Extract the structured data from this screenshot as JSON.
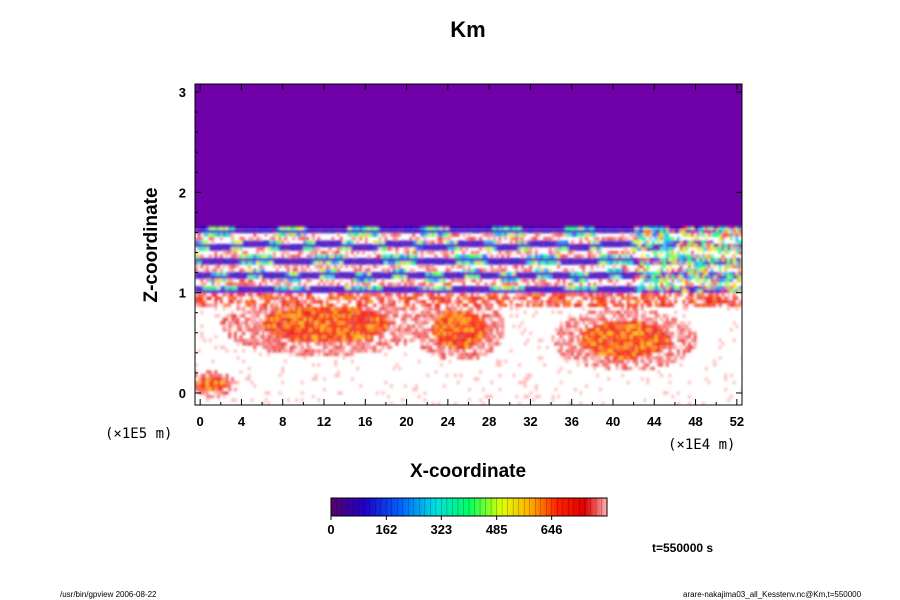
{
  "chart_data": {
    "type": "heatmap",
    "title": "Km",
    "xlabel": "X-coordinate",
    "ylabel": "Z-coordinate",
    "x_tick_labels": [
      "0",
      "4",
      "8",
      "12",
      "16",
      "20",
      "24",
      "28",
      "32",
      "36",
      "40",
      "44",
      "48",
      "52"
    ],
    "y_tick_labels": [
      "0",
      "1",
      "2",
      "3"
    ],
    "x_scale_label": "(×1E4 m)",
    "y_scale_label": "(×1E5 m)",
    "xlim": [
      -0.5,
      52.5
    ],
    "ylim": [
      -0.12,
      3.08
    ],
    "colorbar": {
      "tick_labels": [
        "0",
        "162",
        "323",
        "485",
        "646"
      ],
      "range": [
        0,
        808
      ]
    },
    "time_label": "t=550000 s",
    "regions": [
      {
        "name": "upper uniform layer",
        "z_range": [
          1.67,
          3.08
        ],
        "value": 0
      },
      {
        "name": "banded layer",
        "z_range": [
          1.0,
          1.67
        ],
        "value_range": [
          0,
          808
        ]
      },
      {
        "name": "lower turbulent layer",
        "z_range": [
          -0.12,
          1.0
        ],
        "value_range": [
          400,
          808
        ]
      }
    ]
  },
  "footer": {
    "left": "/usr/bin/gpview 2006-08-22",
    "right": "arare-nakajima03_all_Kesstenv.nc@Km,t=550000"
  },
  "colors": {
    "upper_region": "#7000a8",
    "background": "#ffffff",
    "low": "#6a00a8",
    "mid": "#00ff40",
    "high": "#ff0000",
    "top": "#ffb0b0"
  }
}
